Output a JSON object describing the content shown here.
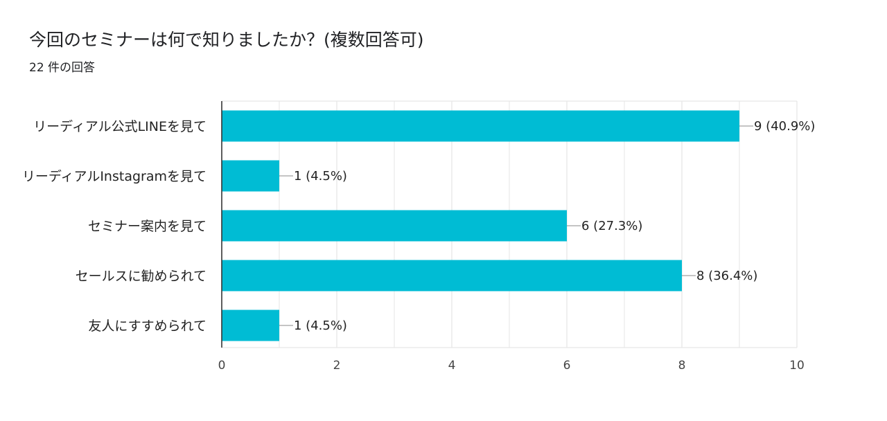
{
  "header": {
    "title": "今回のセミナーは何で知りましたか？(複数回答可)",
    "response_count": "22 件の回答"
  },
  "colors": {
    "bar": "#00bcd4",
    "grid": "#e6e6e6",
    "axis": "#333333",
    "leader": "#888888"
  },
  "chart_data": {
    "type": "bar",
    "orientation": "horizontal",
    "categories": [
      "リーディアル公式LINEを見て",
      "リーディアルInstagramを見て",
      "セミナー案内を見て",
      "セールスに勧められて",
      "友人にすすめられて"
    ],
    "values": [
      9,
      1,
      6,
      8,
      1
    ],
    "value_labels": [
      "9 (40.9%)",
      "1 (4.5%)",
      "6 (27.3%)",
      "8 (36.4%)",
      "1 (4.5%)"
    ],
    "xlim": [
      0,
      10
    ],
    "xticks": [
      0,
      2,
      4,
      6,
      8,
      10
    ],
    "grid": true,
    "legend": "none"
  }
}
